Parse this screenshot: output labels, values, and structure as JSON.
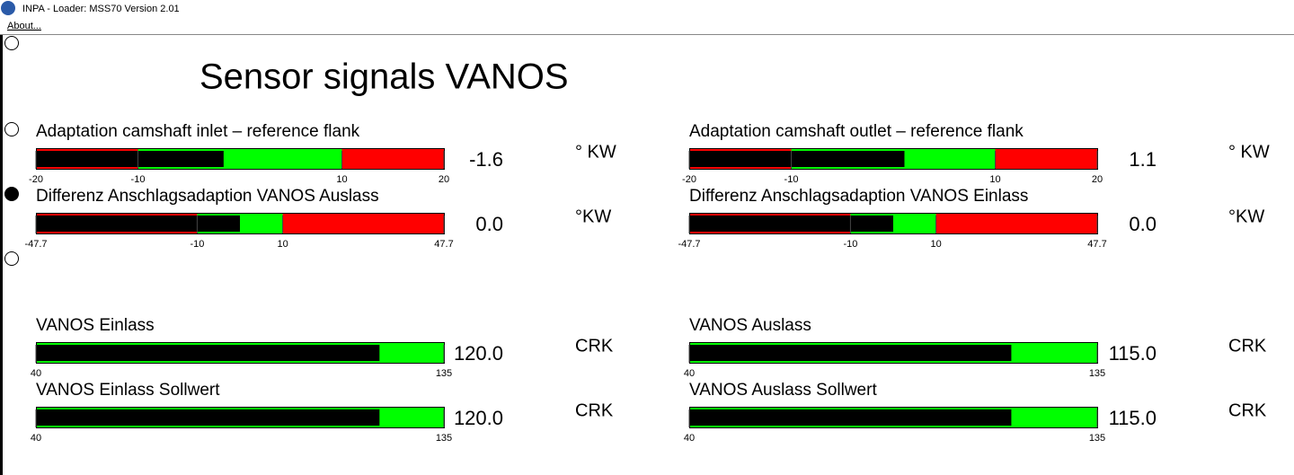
{
  "window": {
    "title": "INPA - Loader:  MSS70 Version 2.01",
    "menu": "About..."
  },
  "heading": "Sensor signals VANOS",
  "gauges": [
    {
      "label": "Adaptation camshaft inlet – reference flank",
      "min": -20,
      "max": 20,
      "ok_range": [
        -10,
        10
      ],
      "ticks": [
        -20,
        -10,
        10,
        20
      ],
      "value": -1.6,
      "unit": "° KW"
    },
    {
      "label": "Adaptation camshaft outlet – reference flank",
      "min": -20,
      "max": 20,
      "ok_range": [
        -10,
        10
      ],
      "ticks": [
        -20,
        -10,
        10,
        20
      ],
      "value": 1.1,
      "unit": "° KW"
    },
    {
      "label": "Differenz Anschlagsadaption VANOS Auslass",
      "min": -47.7,
      "max": 47.7,
      "ok_range": [
        -10,
        10
      ],
      "ticks": [
        -47.7,
        -10,
        10,
        47.7
      ],
      "value": 0,
      "value_label": "0.0",
      "unit": "°KW"
    },
    {
      "label": "Differenz Anschlagsadaption VANOS Einlass",
      "min": -47.7,
      "max": 47.7,
      "ok_range": [
        -10,
        10
      ],
      "ticks": [
        -47.7,
        -10,
        10,
        47.7
      ],
      "value": 0,
      "value_label": "0.0",
      "unit": "°KW"
    },
    {
      "label": "VANOS Einlass",
      "min": 40,
      "max": 135,
      "ticks": [
        40,
        135
      ],
      "value": 120,
      "value_label": "120.0",
      "unit": "CRK"
    },
    {
      "label": "VANOS Auslass",
      "min": 40,
      "max": 135,
      "ticks": [
        40,
        135
      ],
      "value": 115,
      "value_label": "115.0",
      "unit": "CRK"
    },
    {
      "label": "VANOS Einlass Sollwert",
      "min": 40,
      "max": 135,
      "ticks": [
        40,
        135
      ],
      "value": 120,
      "value_label": "120.0",
      "unit": "CRK"
    },
    {
      "label": "VANOS Auslass Sollwert",
      "min": 40,
      "max": 135,
      "ticks": [
        40,
        135
      ],
      "value": 115,
      "value_label": "115.0",
      "unit": "CRK"
    }
  ]
}
